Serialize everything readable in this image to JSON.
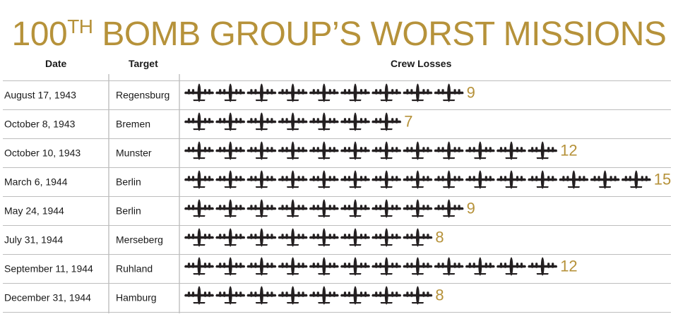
{
  "accent_color": "#b6923a",
  "plane_color": "#231f20",
  "title": {
    "lead": "100",
    "superscript": "TH",
    "rest": " BOMB GROUP’S WORST MISSIONS"
  },
  "headers": {
    "date": "Date",
    "target": "Target",
    "losses": "Crew Losses"
  },
  "chart_data": {
    "type": "table",
    "columns": [
      "Date",
      "Target",
      "Crew Losses"
    ],
    "unit_icon": "b-17-bomber-icon",
    "rows": [
      {
        "date": "August 17, 1943",
        "target": "Regensburg",
        "losses": 9
      },
      {
        "date": "October 8, 1943",
        "target": "Bremen",
        "losses": 7
      },
      {
        "date": "October 10, 1943",
        "target": "Munster",
        "losses": 12
      },
      {
        "date": "March 6, 1944",
        "target": "Berlin",
        "losses": 15
      },
      {
        "date": "May 24, 1944",
        "target": "Berlin",
        "losses": 9
      },
      {
        "date": "July 31, 1944",
        "target": "Merseberg",
        "losses": 8
      },
      {
        "date": "September 11, 1944",
        "target": "Ruhland",
        "losses": 12
      },
      {
        "date": "December 31, 1944",
        "target": "Hamburg",
        "losses": 8
      }
    ]
  }
}
